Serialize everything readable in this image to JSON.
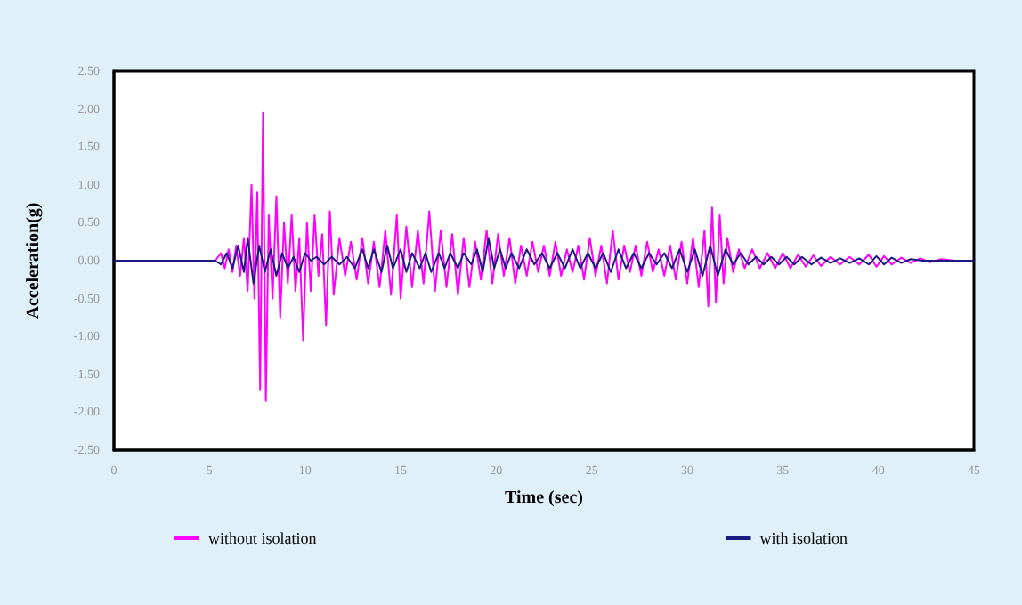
{
  "chart_data": {
    "type": "line",
    "xlabel": "Time (sec)",
    "ylabel": "Acceleration(g)",
    "xlim": [
      0,
      45
    ],
    "xticks": [
      0,
      5,
      10,
      15,
      20,
      25,
      30,
      35,
      40,
      45
    ],
    "ylim": [
      -2.5,
      2.5
    ],
    "yticks": [
      {
        "value": -2.5,
        "label": "-2.50"
      },
      {
        "value": -2,
        "label": "-2.00"
      },
      {
        "value": -1.5,
        "label": "-1.50"
      },
      {
        "value": -1,
        "label": "-1.00"
      },
      {
        "value": -0.5,
        "label": "-0.50"
      },
      {
        "value": 0,
        "label": "0.00"
      },
      {
        "value": 0.5,
        "label": "0.50"
      },
      {
        "value": 1,
        "label": "1.00"
      },
      {
        "value": 1.5,
        "label": "1.50"
      },
      {
        "value": 2,
        "label": "2.00"
      },
      {
        "value": 2.5,
        "label": "2.50"
      }
    ],
    "grid": false,
    "legend": "bottom",
    "marker": "none",
    "line_style": "solid",
    "series": [
      {
        "name": "without isolation",
        "color": "#ff00ff",
        "x": [
          0,
          5.3,
          5.6,
          5.8,
          6.0,
          6.2,
          6.4,
          6.6,
          6.8,
          7.0,
          7.2,
          7.35,
          7.5,
          7.65,
          7.8,
          7.95,
          8.1,
          8.3,
          8.5,
          8.7,
          8.9,
          9.1,
          9.3,
          9.5,
          9.7,
          9.9,
          10.1,
          10.3,
          10.5,
          10.7,
          10.9,
          11.1,
          11.3,
          11.5,
          11.8,
          12.1,
          12.4,
          12.7,
          13.0,
          13.3,
          13.6,
          13.9,
          14.2,
          14.5,
          14.8,
          15.0,
          15.3,
          15.6,
          15.9,
          16.2,
          16.5,
          16.8,
          17.1,
          17.4,
          17.7,
          18.0,
          18.3,
          18.6,
          18.9,
          19.2,
          19.5,
          19.8,
          20.1,
          20.4,
          20.7,
          21.0,
          21.3,
          21.6,
          21.9,
          22.2,
          22.5,
          22.8,
          23.1,
          23.4,
          23.7,
          24.0,
          24.3,
          24.6,
          24.9,
          25.2,
          25.5,
          25.8,
          26.1,
          26.4,
          26.7,
          27.0,
          27.3,
          27.6,
          27.9,
          28.2,
          28.5,
          28.8,
          29.1,
          29.4,
          29.7,
          30.0,
          30.3,
          30.6,
          30.9,
          31.1,
          31.3,
          31.5,
          31.7,
          31.9,
          32.1,
          32.4,
          32.7,
          33.0,
          33.4,
          33.8,
          34.2,
          34.6,
          35.0,
          35.4,
          35.8,
          36.2,
          36.6,
          37.0,
          37.5,
          38.0,
          38.5,
          39.0,
          39.5,
          39.9,
          40.3,
          40.7,
          41.2,
          41.7,
          42.2,
          42.7,
          43.3,
          44.0
        ],
        "values": [
          0,
          0,
          0.1,
          -0.1,
          0.15,
          -0.15,
          0.2,
          -0.2,
          0.3,
          -0.4,
          1.0,
          -0.5,
          0.9,
          -1.7,
          1.95,
          -1.85,
          0.6,
          -0.5,
          0.85,
          -0.75,
          0.5,
          -0.3,
          0.6,
          -0.4,
          0.3,
          -1.05,
          0.5,
          -0.4,
          0.6,
          -0.2,
          0.35,
          -0.85,
          0.65,
          -0.45,
          0.3,
          -0.2,
          0.25,
          -0.25,
          0.3,
          -0.3,
          0.25,
          -0.35,
          0.4,
          -0.45,
          0.6,
          -0.5,
          0.45,
          -0.35,
          0.4,
          -0.3,
          0.65,
          -0.4,
          0.4,
          -0.35,
          0.35,
          -0.45,
          0.3,
          -0.35,
          0.25,
          -0.25,
          0.4,
          -0.3,
          0.35,
          -0.2,
          0.3,
          -0.3,
          0.2,
          -0.2,
          0.25,
          -0.15,
          0.2,
          -0.2,
          0.25,
          -0.2,
          0.15,
          -0.15,
          0.2,
          -0.25,
          0.3,
          -0.2,
          0.2,
          -0.3,
          0.4,
          -0.25,
          0.2,
          -0.15,
          0.2,
          -0.2,
          0.25,
          -0.15,
          0.15,
          -0.2,
          0.2,
          -0.25,
          0.25,
          -0.3,
          0.3,
          -0.35,
          0.4,
          -0.6,
          0.7,
          -0.55,
          0.6,
          -0.3,
          0.3,
          -0.15,
          0.15,
          -0.1,
          0.15,
          -0.1,
          0.1,
          -0.1,
          0.1,
          -0.1,
          0.08,
          -0.08,
          0.07,
          -0.07,
          0.05,
          -0.05,
          0.05,
          -0.05,
          0.08,
          -0.08,
          0.06,
          -0.05,
          0.04,
          -0.03,
          0.03,
          -0.02,
          0.02,
          0
        ]
      },
      {
        "name": "with isolation",
        "color": "#1a1a80",
        "x": [
          0,
          5.3,
          5.6,
          5.9,
          6.2,
          6.5,
          6.8,
          7.0,
          7.3,
          7.6,
          7.9,
          8.2,
          8.5,
          8.8,
          9.1,
          9.4,
          9.7,
          10.0,
          10.3,
          10.6,
          11.0,
          11.4,
          11.8,
          12.2,
          12.6,
          13.0,
          13.3,
          13.6,
          14.0,
          14.3,
          14.6,
          15.0,
          15.3,
          15.6,
          16.0,
          16.3,
          16.6,
          17.0,
          17.3,
          17.6,
          18.0,
          18.3,
          18.7,
          19.0,
          19.3,
          19.6,
          19.9,
          20.2,
          20.5,
          20.8,
          21.2,
          21.6,
          22.0,
          22.4,
          22.8,
          23.2,
          23.6,
          24.0,
          24.4,
          24.8,
          25.2,
          25.6,
          26.0,
          26.4,
          26.8,
          27.2,
          27.6,
          28.0,
          28.4,
          28.8,
          29.2,
          29.6,
          30.0,
          30.4,
          30.8,
          31.2,
          31.6,
          32.0,
          32.4,
          32.8,
          33.2,
          33.6,
          34.0,
          34.4,
          34.8,
          35.2,
          35.6,
          36.0,
          36.5,
          37.0,
          37.5,
          38.0,
          38.5,
          39.0,
          39.5,
          39.9,
          40.3,
          40.7,
          41.2,
          41.7,
          42.3,
          45
        ],
        "values": [
          0,
          0,
          -0.05,
          0.1,
          -0.1,
          0.2,
          -0.15,
          0.3,
          -0.3,
          0.2,
          -0.15,
          0.15,
          -0.2,
          0.1,
          -0.1,
          0.05,
          -0.15,
          0.1,
          0,
          0.05,
          -0.05,
          0.05,
          -0.05,
          0.05,
          -0.1,
          0.15,
          -0.1,
          0.15,
          -0.15,
          0.2,
          -0.1,
          0.15,
          -0.15,
          0.1,
          -0.1,
          0.1,
          -0.15,
          0.1,
          -0.1,
          0.1,
          -0.1,
          0.1,
          -0.05,
          0.15,
          -0.15,
          0.3,
          -0.1,
          0.15,
          -0.1,
          0.1,
          -0.1,
          0.15,
          -0.05,
          0.1,
          -0.1,
          0.1,
          -0.1,
          0.15,
          -0.1,
          0.1,
          -0.1,
          0.1,
          -0.15,
          0.15,
          -0.1,
          0.1,
          -0.1,
          0.1,
          -0.05,
          0.1,
          -0.1,
          0.15,
          -0.15,
          0.15,
          -0.2,
          0.2,
          -0.2,
          0.15,
          -0.05,
          0.1,
          -0.05,
          0.05,
          -0.05,
          0.05,
          -0.05,
          0.05,
          -0.05,
          0.05,
          -0.05,
          0.04,
          -0.03,
          0.03,
          -0.03,
          0.03,
          -0.05,
          0.06,
          -0.05,
          0.04,
          -0.03,
          0.02,
          0,
          0
        ]
      }
    ]
  }
}
